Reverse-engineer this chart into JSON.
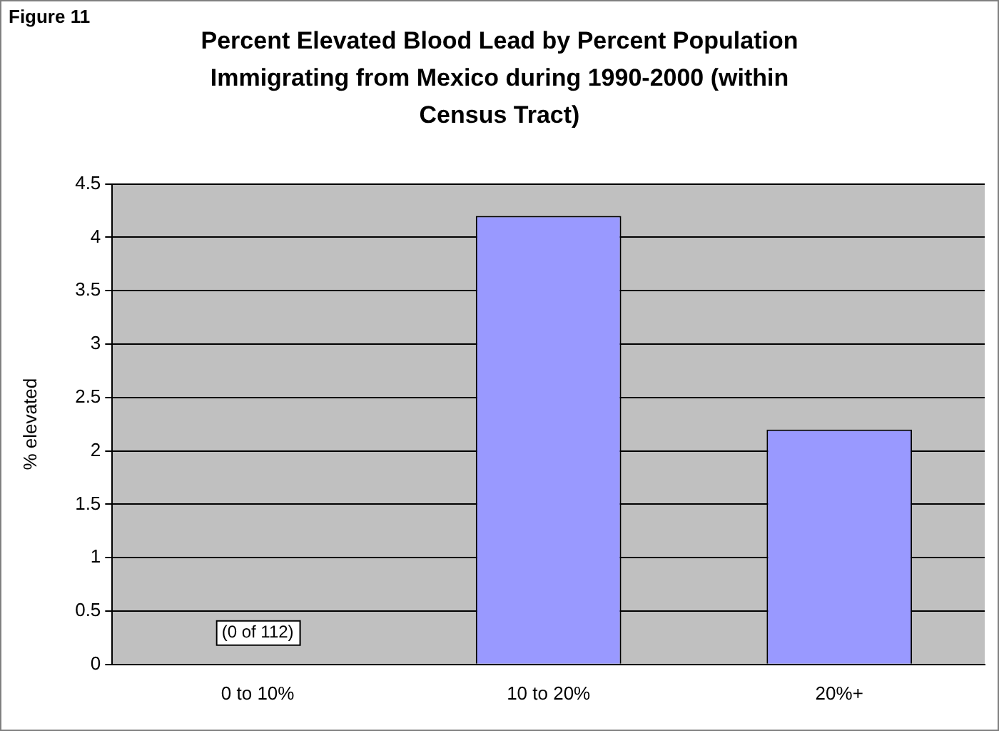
{
  "chart_data": {
    "type": "bar",
    "title": "Percent Elevated Blood Lead by Percent Population Immigrating from Mexico during 1990-2000 (within Census Tract)",
    "ylabel": "% elevated",
    "categories": [
      "0 to 10%",
      "10 to 20%",
      "20%+"
    ],
    "values": [
      0,
      4.2,
      2.2
    ],
    "color": "#9999ff",
    "ylim": [
      0,
      4.5
    ],
    "yticks": [
      0,
      0.5,
      1,
      1.5,
      2,
      2.5,
      3,
      3.5,
      4,
      4.5
    ],
    "grid": "y",
    "legend": false,
    "annotations": [
      "Figure 11",
      {
        "text": "(0 of 112)",
        "x": "0 to 10%",
        "y": 0
      }
    ]
  }
}
